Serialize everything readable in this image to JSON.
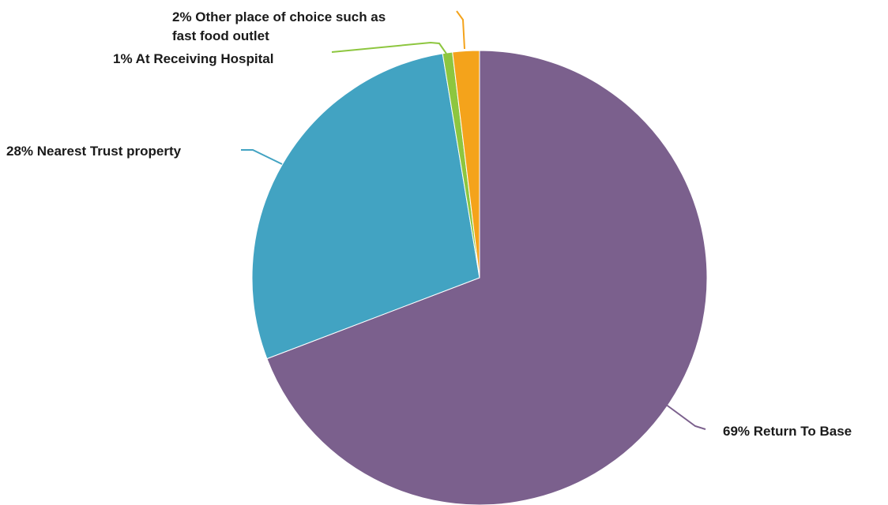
{
  "chart_data": {
    "type": "pie",
    "title": "",
    "start_angle_deg": 0,
    "direction": "clockwise",
    "slices": [
      {
        "label": "Return To Base",
        "percent_label": "69%",
        "value": 69.2,
        "color": "#7b608d"
      },
      {
        "label": "Nearest Trust property",
        "percent_label": "28%",
        "value": 28.2,
        "color": "#42a3c2"
      },
      {
        "label": "At Receiving Hospital",
        "percent_label": "1%",
        "value": 0.7,
        "color": "#8dc63f"
      },
      {
        "label": "Other place of choice such as fast food outlet",
        "percent_label": "2%",
        "value": 1.9,
        "color": "#f4a31b"
      }
    ],
    "labels": [
      {
        "lines": [
          "69% Return To Base"
        ]
      },
      {
        "lines": [
          "28% Nearest Trust property"
        ]
      },
      {
        "lines": [
          "1% At Receiving Hospital"
        ]
      },
      {
        "lines": [
          "2% Other place of choice such as",
          "fast food outlet"
        ]
      }
    ],
    "legend": "none"
  }
}
